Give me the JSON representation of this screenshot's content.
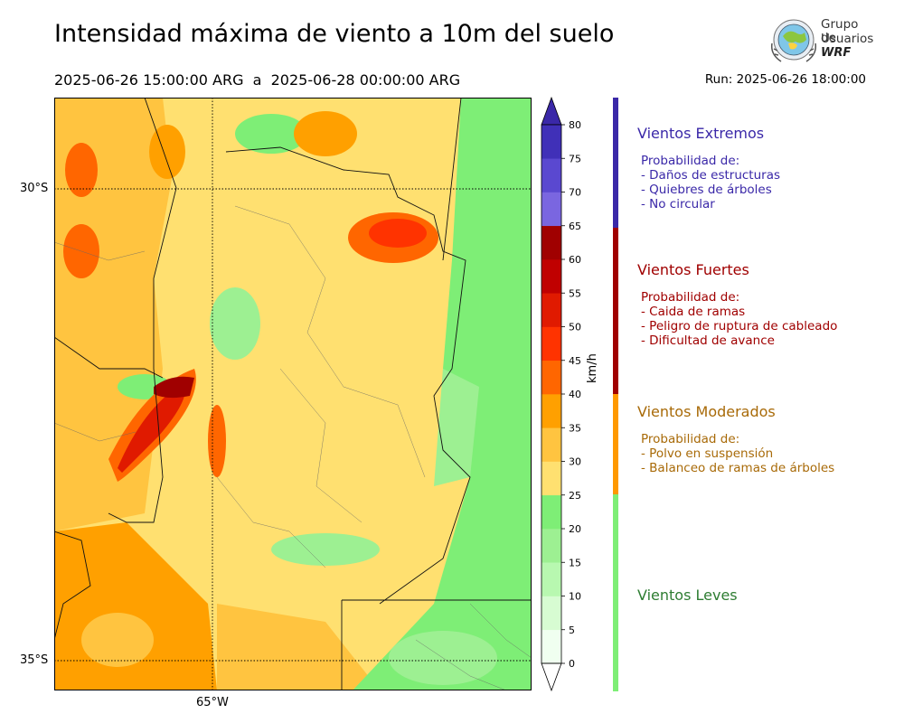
{
  "title": "Intensidad máxima de viento a 10m del suelo",
  "period": "2025-06-26 15:00:00 ARG  a  2025-06-28 00:00:00 ARG",
  "run": "Run: 2025-06-26 18:00:00",
  "logo": {
    "line1": "Grupo de",
    "line2": "Usuarios",
    "line3": "WRF"
  },
  "map": {
    "lat_labels": [
      "30°S",
      "35°S"
    ],
    "lon_labels": [
      "65°W"
    ]
  },
  "colorbar": {
    "unit": "km/h",
    "ticks": [
      "0",
      "5",
      "10",
      "15",
      "20",
      "25",
      "30",
      "35",
      "40",
      "45",
      "50",
      "55",
      "60",
      "65",
      "70",
      "75",
      "80"
    ],
    "colors": [
      "#f0fff0",
      "#d7fcd2",
      "#b8f8b0",
      "#9df092",
      "#7eee76",
      "#ffe070",
      "#ffc440",
      "#ffa000",
      "#ff6600",
      "#ff3300",
      "#e01a00",
      "#c00000",
      "#a00000",
      "#7a66e0",
      "#5a48d0",
      "#4030b8"
    ],
    "extend_low": "#ffffff",
    "extend_high": "#3a28a8"
  },
  "categories": [
    {
      "name": "Vientos Extremos",
      "color": "#3a28a8",
      "desc": [
        "Probabilidad de:",
        "- Daños de estructuras",
        "- Quiebres de árboles",
        "- No circular"
      ]
    },
    {
      "name": "Vientos Fuertes",
      "color": "#a00000",
      "desc": [
        "Probabilidad de:",
        "- Caida de ramas",
        "- Peligro de ruptura de cableado",
        "- Dificultad de avance"
      ]
    },
    {
      "name": "Vientos Moderados",
      "color": "#a86a08",
      "desc": [
        "Probabilidad de:",
        "- Polvo en suspensión",
        "- Balanceo de ramas de árboles"
      ]
    },
    {
      "name": "Vientos Leves",
      "color": "#2e7d32",
      "desc": []
    }
  ],
  "strip_colors": [
    "#3a28a8",
    "#a00000",
    "#ff9900",
    "#7eee76"
  ]
}
